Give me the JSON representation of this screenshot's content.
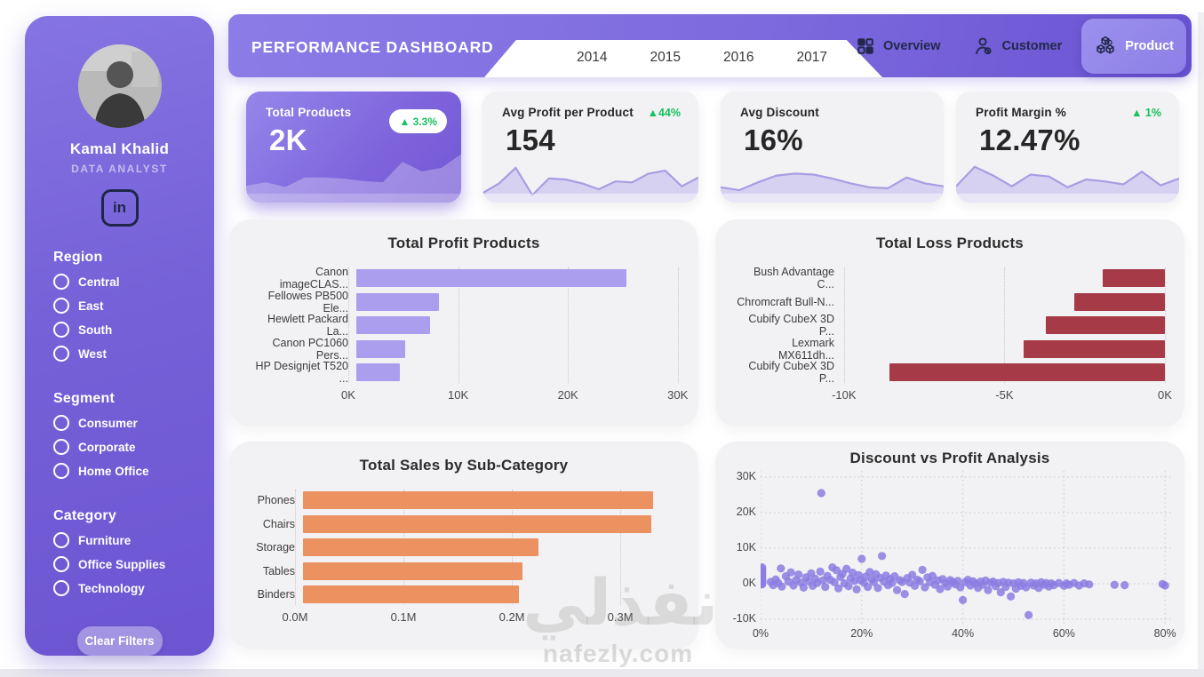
{
  "sidebar": {
    "name": "Kamal Khalid",
    "role": "DATA ANALYST",
    "linkedin_label": "in",
    "filters": [
      {
        "title": "Region",
        "options": [
          "Central",
          "East",
          "South",
          "West"
        ]
      },
      {
        "title": "Segment",
        "options": [
          "Consumer",
          "Corporate",
          "Home Office"
        ]
      },
      {
        "title": "Category",
        "options": [
          "Furniture",
          "Office Supplies",
          "Technology"
        ]
      }
    ],
    "clear_button": "Clear Filters"
  },
  "header": {
    "title": "PERFORMANCE DASHBOARD",
    "years": [
      "2014",
      "2015",
      "2016",
      "2017"
    ],
    "nav": [
      {
        "label": "Overview",
        "icon": "grid-icon",
        "active": false
      },
      {
        "label": "Customer",
        "icon": "person-icon",
        "active": false
      },
      {
        "label": "Product",
        "icon": "cubes-icon",
        "active": true
      }
    ]
  },
  "kpis": [
    {
      "title": "Total Products",
      "value": "2K",
      "delta": "▲ 3.3%",
      "delta_style": "badge",
      "style": "purple",
      "spark": [
        2.2,
        2.8,
        2.0,
        3.6,
        3.6,
        3.4,
        3.0,
        2.8,
        6.2,
        4.6,
        5.2,
        7.5
      ]
    },
    {
      "title": "Avg Profit per Product",
      "value": "154",
      "delta": "▲44%",
      "delta_style": "plain",
      "style": "light",
      "spark": [
        1.2,
        3.2,
        6.4,
        0.8,
        4.2,
        4.0,
        3.2,
        2.0,
        3.6,
        3.4,
        5.2,
        5.8,
        2.6,
        4.4
      ]
    },
    {
      "title": "Avg Discount",
      "value": "16%",
      "delta": "",
      "delta_style": "none",
      "style": "light",
      "spark": [
        2.4,
        1.8,
        3.4,
        4.8,
        5.2,
        5.0,
        4.2,
        3.2,
        2.4,
        2.2,
        4.4,
        3.2,
        2.6
      ]
    },
    {
      "title": "Profit Margin %",
      "value": "12.47%",
      "delta": "▲ 1%",
      "delta_style": "plain",
      "style": "light",
      "spark": [
        2.6,
        6.6,
        4.8,
        2.6,
        5.0,
        4.6,
        2.4,
        4.0,
        3.6,
        3.0,
        5.6,
        2.8,
        4.2
      ]
    }
  ],
  "watermark": {
    "arabic": "نفذلي",
    "domain": "nafezly.com"
  },
  "colors": {
    "sidebar_purple": "#7763D8",
    "header_purple": "#7D6ADE",
    "active_nav": "#9488EA",
    "card_bg": "#F2F1F3",
    "green": "#14C25E",
    "profit_bar": "#AB9EEF",
    "loss_bar": "#A63A46",
    "sales_bar": "#EB9260",
    "scatter_dot": "#8B7DE2",
    "nav_text": "#23284A"
  },
  "chart_data": [
    {
      "type": "bar",
      "orientation": "horizontal",
      "grid": true,
      "legend": false,
      "title": "Total Profit Products",
      "categories": [
        "Canon imageCLAS...",
        "Fellowes PB500 Ele...",
        "Hewlett Packard La...",
        "Canon PC1060 Pers...",
        "HP Designjet T520 ..."
      ],
      "values": [
        25200,
        7700,
        6900,
        4600,
        4100
      ],
      "xlim": [
        0,
        30100
      ],
      "xticks": [
        {
          "v": 0,
          "label": "0K"
        },
        {
          "v": 10000,
          "label": "10K"
        },
        {
          "v": 20000,
          "label": "20K"
        },
        {
          "v": 30000,
          "label": "30K"
        }
      ],
      "bar_color": "#AB9EEF"
    },
    {
      "type": "bar",
      "orientation": "horizontal",
      "grid": true,
      "legend": false,
      "title": "Total Loss Products",
      "categories": [
        "Bush Advantage C...",
        "Chromcraft Bull-N...",
        "Cubify CubeX 3D P...",
        "Lexmark MX611dh...",
        "Cubify CubeX 3D P..."
      ],
      "values": [
        -2000,
        -2900,
        -3800,
        -4500,
        -8800
      ],
      "xlim": [
        -10300,
        0
      ],
      "xticks": [
        {
          "v": -10000,
          "label": "-10K"
        },
        {
          "v": -5000,
          "label": "-5K"
        },
        {
          "v": 0,
          "label": "0K"
        }
      ],
      "bar_color": "#A63A46"
    },
    {
      "type": "bar",
      "orientation": "horizontal",
      "grid": true,
      "legend": false,
      "title": "Total Sales by Sub-Category",
      "categories": [
        "Phones",
        "Chairs",
        "Storage",
        "Tables",
        "Binders"
      ],
      "values": [
        330000,
        328000,
        222000,
        207000,
        203000
      ],
      "xlim": [
        0,
        354000
      ],
      "xticks": [
        {
          "v": 0,
          "label": "0.0M"
        },
        {
          "v": 100000,
          "label": "0.1M"
        },
        {
          "v": 200000,
          "label": "0.2M"
        },
        {
          "v": 300000,
          "label": "0.3M"
        }
      ],
      "bar_color": "#EB9260"
    },
    {
      "type": "scatter",
      "grid": true,
      "legend": false,
      "title": "Discount vs Profit Analysis",
      "xlim": [
        0,
        81.2
      ],
      "ylim": [
        -11.25,
        31.75
      ],
      "xticks": [
        {
          "v": 0,
          "label": "0%"
        },
        {
          "v": 20,
          "label": "20%"
        },
        {
          "v": 40,
          "label": "40%"
        },
        {
          "v": 60,
          "label": "60%"
        },
        {
          "v": 80,
          "label": "80%"
        }
      ],
      "yticks": [
        {
          "v": 30,
          "label": "30K"
        },
        {
          "v": 20,
          "label": "20K"
        },
        {
          "v": 10,
          "label": "10K"
        },
        {
          "v": 0,
          "label": "0K"
        },
        {
          "v": -10,
          "label": "-10K"
        }
      ],
      "dot_color": "#8B7DE2",
      "points": [
        [
          0.3,
          4.6
        ],
        [
          0.3,
          4.1
        ],
        [
          0.3,
          3.6
        ],
        [
          0.3,
          3.2
        ],
        [
          0.3,
          2.8
        ],
        [
          0.3,
          2.4
        ],
        [
          0.3,
          2.0
        ],
        [
          0.3,
          1.6
        ],
        [
          0.3,
          1.2
        ],
        [
          0.3,
          0.9
        ],
        [
          0.3,
          0.6
        ],
        [
          0.3,
          0.3
        ],
        [
          0.3,
          0.1
        ],
        [
          0.3,
          -0.2
        ],
        [
          2,
          0.5
        ],
        [
          2.5,
          -0.4
        ],
        [
          3,
          1.2
        ],
        [
          3.5,
          0.2
        ],
        [
          4,
          4.3
        ],
        [
          4.2,
          -0.8
        ],
        [
          5,
          2.1
        ],
        [
          5.5,
          0.6
        ],
        [
          6,
          3.2
        ],
        [
          6.5,
          -0.5
        ],
        [
          7,
          1.0
        ],
        [
          7.5,
          2.6
        ],
        [
          8,
          0.3
        ],
        [
          8.5,
          -1.1
        ],
        [
          9,
          1.8
        ],
        [
          9.5,
          0.7
        ],
        [
          10,
          2.9
        ],
        [
          10.3,
          -0.6
        ],
        [
          10.8,
          1.4
        ],
        [
          11.2,
          0.2
        ],
        [
          11.8,
          3.4
        ],
        [
          12,
          25.5
        ],
        [
          12.3,
          0.9
        ],
        [
          12.8,
          -0.9
        ],
        [
          13.2,
          2.2
        ],
        [
          13.8,
          1.1
        ],
        [
          14.2,
          4.6
        ],
        [
          14.6,
          0.4
        ],
        [
          15,
          3.8
        ],
        [
          15.4,
          -1.3
        ],
        [
          15.8,
          1.9
        ],
        [
          16.2,
          2.8
        ],
        [
          16.6,
          0.1
        ],
        [
          17,
          4.2
        ],
        [
          17.4,
          -0.7
        ],
        [
          17.8,
          1.5
        ],
        [
          18.2,
          3.1
        ],
        [
          18.6,
          0.8
        ],
        [
          19,
          -1.6
        ],
        [
          19.4,
          2.4
        ],
        [
          19.8,
          1.0
        ],
        [
          20,
          7.0
        ],
        [
          20.4,
          0.3
        ],
        [
          20.8,
          2.0
        ],
        [
          21.2,
          -0.9
        ],
        [
          21.6,
          3.3
        ],
        [
          22,
          1.2
        ],
        [
          22.4,
          0.5
        ],
        [
          22.8,
          2.7
        ],
        [
          23.2,
          -1.2
        ],
        [
          23.6,
          1.7
        ],
        [
          24,
          7.8
        ],
        [
          24.4,
          0.6
        ],
        [
          24.8,
          2.3
        ],
        [
          25.2,
          -0.4
        ],
        [
          25.6,
          1.3
        ],
        [
          26,
          0.2
        ],
        [
          26.5,
          2.1
        ],
        [
          27,
          -1.8
        ],
        [
          27.5,
          1.0
        ],
        [
          28,
          0.5
        ],
        [
          28.5,
          -2.9
        ],
        [
          29,
          1.6
        ],
        [
          29.5,
          0.3
        ],
        [
          30,
          2.5
        ],
        [
          30.5,
          -0.6
        ],
        [
          31,
          1.1
        ],
        [
          31.5,
          0.7
        ],
        [
          32,
          3.9
        ],
        [
          32.5,
          -1.0
        ],
        [
          33,
          1.8
        ],
        [
          33.5,
          0.4
        ],
        [
          34,
          2.2
        ],
        [
          34.5,
          -0.3
        ],
        [
          35,
          0.9
        ],
        [
          35.5,
          -1.5
        ],
        [
          36,
          1.3
        ],
        [
          36.5,
          0.2
        ],
        [
          37,
          -0.8
        ],
        [
          37.5,
          1.0
        ],
        [
          38,
          0.5
        ],
        [
          38.5,
          -0.2
        ],
        [
          39,
          0.8
        ],
        [
          39.5,
          -1.0
        ],
        [
          40,
          -4.6
        ],
        [
          40.5,
          0.4
        ],
        [
          41,
          1.1
        ],
        [
          41.5,
          -0.5
        ],
        [
          42,
          0.7
        ],
        [
          42.5,
          0.1
        ],
        [
          43,
          -1.2
        ],
        [
          43.5,
          0.6
        ],
        [
          44,
          -0.3
        ],
        [
          44.5,
          0.9
        ],
        [
          45,
          -1.8
        ],
        [
          45.5,
          0.3
        ],
        [
          46,
          0.6
        ],
        [
          46.5,
          -0.7
        ],
        [
          47,
          0.2
        ],
        [
          47.5,
          -2.4
        ],
        [
          48,
          0.5
        ],
        [
          48.5,
          -0.9
        ],
        [
          49,
          0.3
        ],
        [
          49.5,
          -3.6
        ],
        [
          50,
          0.1
        ],
        [
          50.5,
          -1.4
        ],
        [
          51,
          0.4
        ],
        [
          51.5,
          -0.6
        ],
        [
          52,
          0.2
        ],
        [
          52.5,
          -1.0
        ],
        [
          53,
          -8.8
        ],
        [
          53.5,
          0.3
        ],
        [
          54,
          -0.5
        ],
        [
          54.5,
          0.1
        ],
        [
          55,
          -1.2
        ],
        [
          55.5,
          0.4
        ],
        [
          56,
          -0.3
        ],
        [
          56.5,
          0.2
        ],
        [
          57,
          -0.8
        ],
        [
          57.5,
          0.1
        ],
        [
          58,
          -0.4
        ],
        [
          59,
          0.2
        ],
        [
          60,
          -0.6
        ],
        [
          60.5,
          0.1
        ],
        [
          61,
          -0.3
        ],
        [
          62,
          0.2
        ],
        [
          63,
          -0.5
        ],
        [
          64,
          0.1
        ],
        [
          65,
          -0.2
        ],
        [
          70,
          -0.3
        ],
        [
          72,
          -0.4
        ],
        [
          79.5,
          -0.1
        ],
        [
          80,
          -0.5
        ]
      ]
    }
  ]
}
